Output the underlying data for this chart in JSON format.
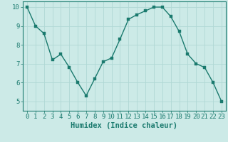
{
  "x": [
    0,
    1,
    2,
    3,
    4,
    5,
    6,
    7,
    8,
    9,
    10,
    11,
    12,
    13,
    14,
    15,
    16,
    17,
    18,
    19,
    20,
    21,
    22,
    23
  ],
  "y": [
    10.0,
    9.0,
    8.6,
    7.2,
    7.5,
    6.8,
    6.0,
    5.3,
    6.2,
    7.1,
    7.3,
    8.3,
    9.35,
    9.6,
    9.8,
    10.0,
    10.0,
    9.5,
    8.7,
    7.5,
    7.0,
    6.8,
    6.0,
    5.0
  ],
  "line_color": "#1a7a6e",
  "marker_color": "#1a7a6e",
  "bg_color": "#cceae7",
  "grid_color": "#b0d8d4",
  "xlabel": "Humidex (Indice chaleur)",
  "xlabel_color": "#1a7a6e",
  "tick_color": "#1a7a6e",
  "spine_color": "#1a7a6e",
  "ylim": [
    4.5,
    10.3
  ],
  "xlim": [
    -0.5,
    23.5
  ],
  "yticks": [
    5,
    6,
    7,
    8,
    9,
    10
  ],
  "xticks": [
    0,
    1,
    2,
    3,
    4,
    5,
    6,
    7,
    8,
    9,
    10,
    11,
    12,
    13,
    14,
    15,
    16,
    17,
    18,
    19,
    20,
    21,
    22,
    23
  ],
  "xlabel_fontsize": 7.5,
  "tick_fontsize": 6.5,
  "linewidth": 1.0,
  "markersize": 2.5
}
